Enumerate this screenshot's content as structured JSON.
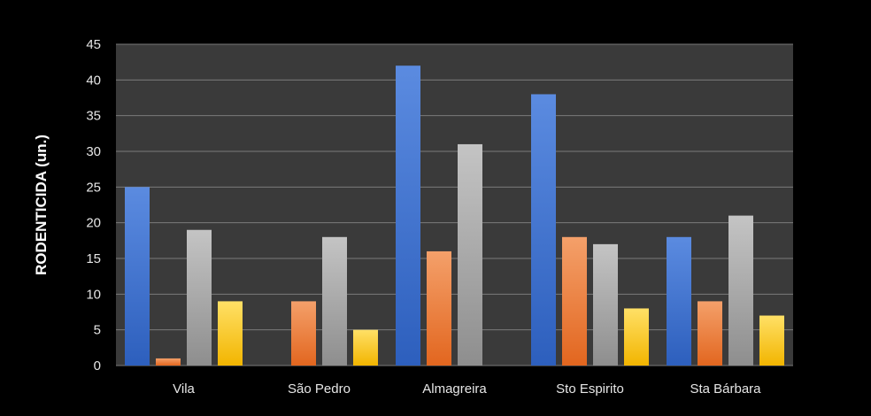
{
  "chart_data": {
    "type": "bar",
    "title": "",
    "xlabel": "",
    "ylabel": "RODENTICIDA  (un.)",
    "ylim": [
      0,
      45
    ],
    "yticks": [
      0,
      5,
      10,
      15,
      20,
      25,
      30,
      35,
      40,
      45
    ],
    "grid": true,
    "legend": "none",
    "categories": [
      "Vila",
      "São Pedro",
      "Almagreira",
      "Sto Espirito",
      "Sta Bárbara"
    ],
    "series": [
      {
        "color_top": "#5b8be0",
        "color_bottom": "#2d5fbd",
        "values": [
          25,
          0,
          42,
          38,
          18
        ]
      },
      {
        "color_top": "#f4a06a",
        "color_bottom": "#e2661f",
        "values": [
          1,
          9,
          16,
          18,
          9
        ]
      },
      {
        "color_top": "#c4c4c4",
        "color_bottom": "#8e8e8e",
        "values": [
          19,
          18,
          31,
          17,
          21
        ]
      },
      {
        "color_top": "#ffe066",
        "color_bottom": "#f2b500",
        "values": [
          9,
          5,
          0,
          8,
          7
        ]
      }
    ],
    "plot_background": "#3a3a3a",
    "gridline_color": "#7a7a7a"
  }
}
